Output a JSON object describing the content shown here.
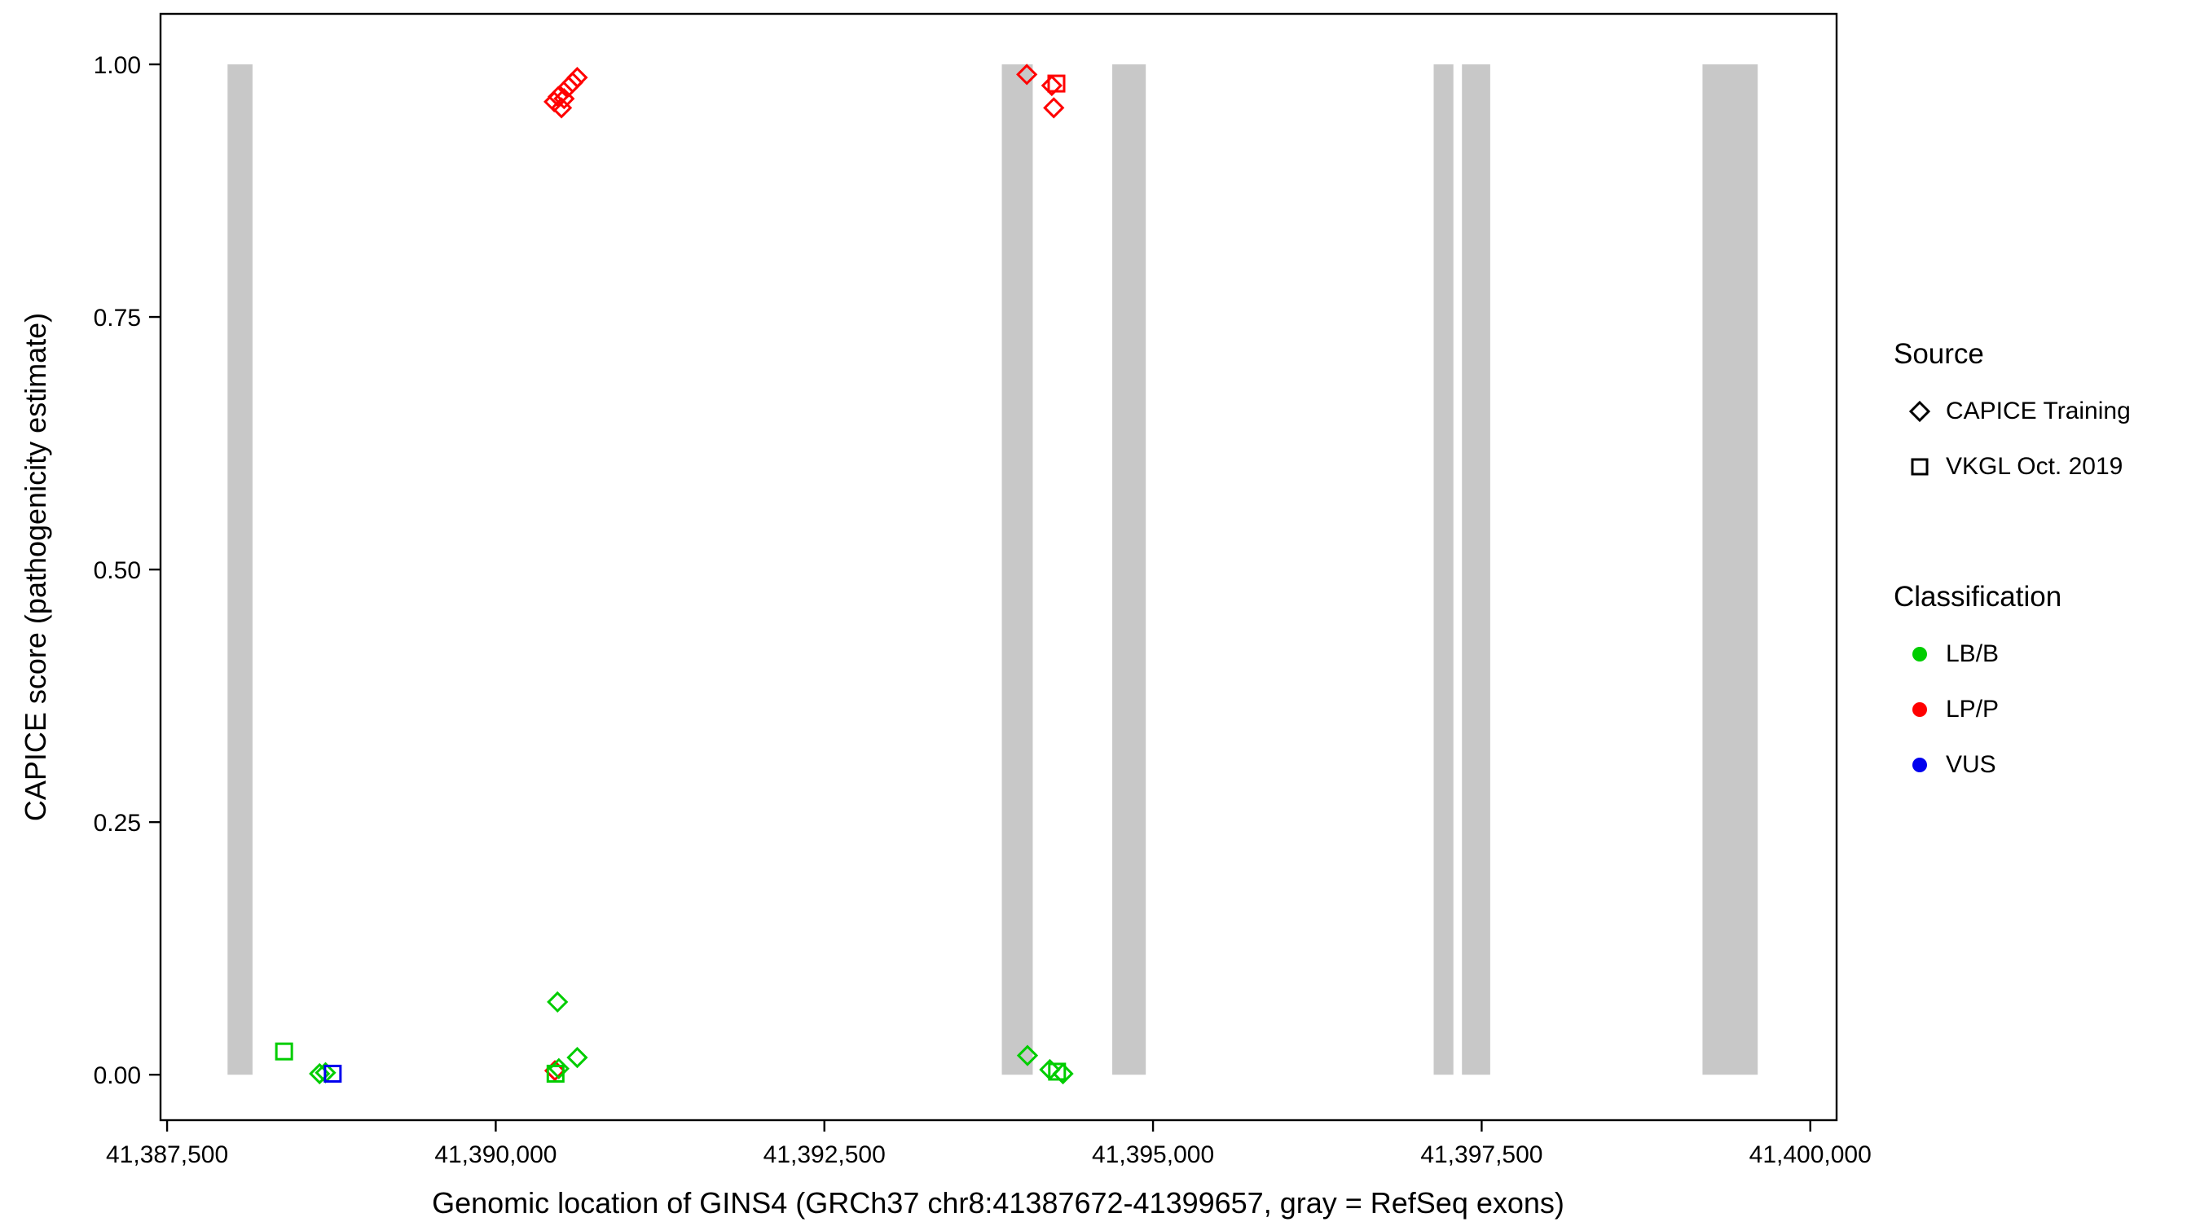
{
  "chart_data": {
    "type": "scatter",
    "title": "",
    "xlabel": "Genomic location of GINS4 (GRCh37 chr8:41387672-41399657, gray = RefSeq exons)",
    "ylabel": "CAPICE score (pathogenicity estimate)",
    "x_domain": [
      41387450,
      41400200
    ],
    "y_domain": [
      -0.045,
      1.05
    ],
    "grid": "off",
    "x_ticks": [
      {
        "value": 41387500,
        "label": "41,387,500"
      },
      {
        "value": 41390000,
        "label": "41,390,000"
      },
      {
        "value": 41392500,
        "label": "41,392,500"
      },
      {
        "value": 41395000,
        "label": "41,395,000"
      },
      {
        "value": 41397500,
        "label": "41,397,500"
      },
      {
        "value": 41400000,
        "label": "41,400,000"
      }
    ],
    "y_ticks": [
      {
        "value": 0,
        "label": "0.00"
      },
      {
        "value": 0.25,
        "label": "0.25"
      },
      {
        "value": 0.5,
        "label": "0.50"
      },
      {
        "value": 0.75,
        "label": "0.75"
      },
      {
        "value": 1,
        "label": "1.00"
      }
    ],
    "exon_y": [
      0,
      1
    ],
    "exons": [
      [
        41387960,
        41388150
      ],
      [
        41393850,
        41394085
      ],
      [
        41394690,
        41394945
      ],
      [
        41397135,
        41397285
      ],
      [
        41397350,
        41397565
      ],
      [
        41399180,
        41399600
      ]
    ],
    "points": [
      {
        "x": 41390445,
        "y": 0.963,
        "source": "CAPICE Training",
        "class": "LP/P"
      },
      {
        "x": 41390475,
        "y": 0.968,
        "source": "CAPICE Training",
        "class": "LP/P"
      },
      {
        "x": 41390500,
        "y": 0.957,
        "source": "CAPICE Training",
        "class": "LP/P"
      },
      {
        "x": 41390520,
        "y": 0.966,
        "source": "CAPICE Training",
        "class": "LP/P"
      },
      {
        "x": 41390555,
        "y": 0.978,
        "source": "CAPICE Training",
        "class": "LP/P"
      },
      {
        "x": 41390585,
        "y": 0.982,
        "source": "CAPICE Training",
        "class": "LP/P"
      },
      {
        "x": 41390620,
        "y": 0.987,
        "source": "CAPICE Training",
        "class": "LP/P"
      },
      {
        "x": 41394040,
        "y": 0.99,
        "source": "CAPICE Training",
        "class": "LP/P"
      },
      {
        "x": 41394230,
        "y": 0.979,
        "source": "CAPICE Training",
        "class": "LP/P"
      },
      {
        "x": 41394265,
        "y": 0.981,
        "source": "VKGL Oct. 2019",
        "class": "LP/P"
      },
      {
        "x": 41394245,
        "y": 0.957,
        "source": "CAPICE Training",
        "class": "LP/P"
      },
      {
        "x": 41388390,
        "y": 0.023,
        "source": "VKGL Oct. 2019",
        "class": "LB/B"
      },
      {
        "x": 41388660,
        "y": 0.001,
        "source": "CAPICE Training",
        "class": "LB/B"
      },
      {
        "x": 41388705,
        "y": 0.002,
        "source": "CAPICE Training",
        "class": "LB/B"
      },
      {
        "x": 41388760,
        "y": 0.001,
        "source": "VKGL Oct. 2019",
        "class": "VUS"
      },
      {
        "x": 41390470,
        "y": 0.072,
        "source": "CAPICE Training",
        "class": "LB/B"
      },
      {
        "x": 41390450,
        "y": 0.004,
        "source": "CAPICE Training",
        "class": "LP/P"
      },
      {
        "x": 41390455,
        "y": 0.001,
        "source": "VKGL Oct. 2019",
        "class": "LB/B"
      },
      {
        "x": 41390480,
        "y": 0.006,
        "source": "CAPICE Training",
        "class": "LB/B"
      },
      {
        "x": 41390620,
        "y": 0.017,
        "source": "CAPICE Training",
        "class": "LB/B"
      },
      {
        "x": 41394045,
        "y": 0.019,
        "source": "CAPICE Training",
        "class": "LB/B"
      },
      {
        "x": 41394215,
        "y": 0.005,
        "source": "CAPICE Training",
        "class": "LB/B"
      },
      {
        "x": 41394270,
        "y": 0.003,
        "source": "VKGL Oct. 2019",
        "class": "LB/B"
      },
      {
        "x": 41394315,
        "y": 0.001,
        "source": "CAPICE Training",
        "class": "LB/B"
      }
    ],
    "legend": {
      "source": {
        "title": "Source",
        "items": [
          {
            "label": "CAPICE Training",
            "shape": "diamond"
          },
          {
            "label": "VKGL Oct. 2019",
            "shape": "square"
          }
        ]
      },
      "classification": {
        "title": "Classification",
        "items": [
          {
            "label": "LB/B"
          },
          {
            "label": "LP/P"
          },
          {
            "label": "VUS"
          }
        ]
      }
    },
    "colors": {
      "LB/B": "#00CD00",
      "LP/P": "#FF0000",
      "VUS": "#0000EE",
      "exon": "#C8C8C8"
    }
  }
}
